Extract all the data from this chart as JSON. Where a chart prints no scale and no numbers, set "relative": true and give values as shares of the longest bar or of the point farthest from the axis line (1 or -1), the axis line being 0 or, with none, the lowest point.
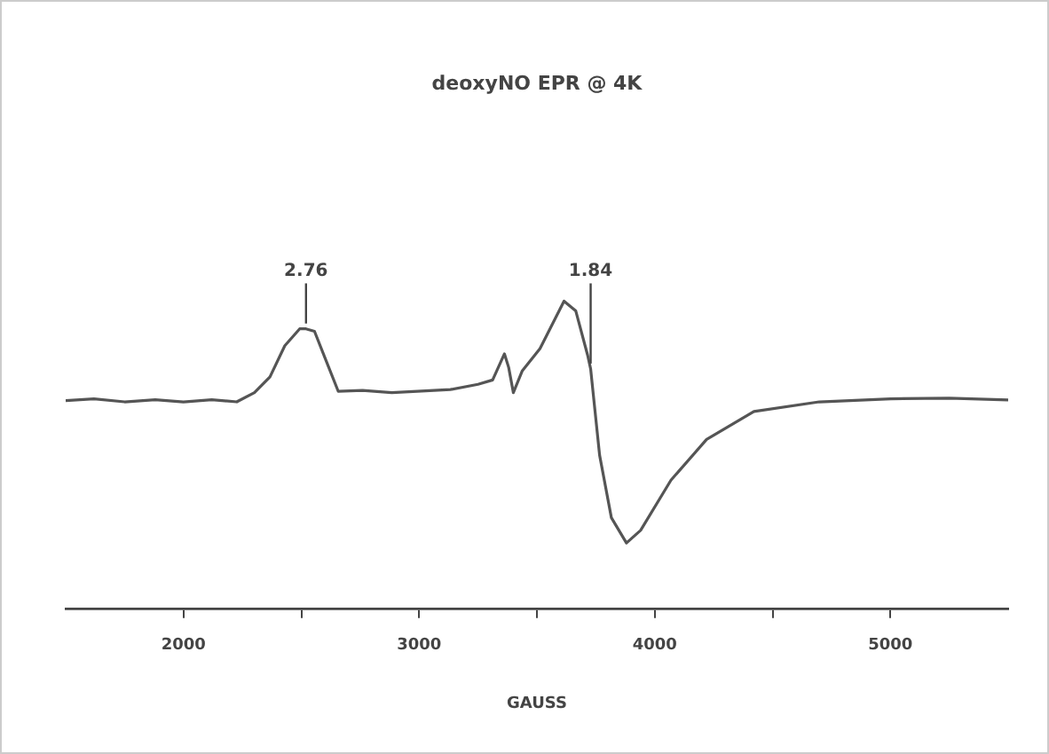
{
  "chart_data": {
    "type": "line",
    "title": "deoxyNO EPR @ 4K",
    "xlabel": "GAUSS",
    "relative": true,
    "x": [
      1500,
      1620,
      1750,
      1880,
      2000,
      2120,
      2226,
      2301,
      2367,
      2430,
      2493,
      2520,
      2556,
      2606,
      2657,
      2760,
      2884,
      3010,
      3133,
      3250,
      3312,
      3362,
      3380,
      3400,
      3438,
      3513,
      3615,
      3665,
      3715,
      3728,
      3766,
      3816,
      3880,
      3940,
      4069,
      4220,
      4421,
      4698,
      5001,
      5250,
      5500
    ],
    "series": [
      {
        "color": "#555555",
        "values": [
          0.677,
          0.683,
          0.673,
          0.68,
          0.673,
          0.68,
          0.673,
          0.703,
          0.754,
          0.855,
          0.91,
          0.91,
          0.902,
          0.805,
          0.707,
          0.71,
          0.703,
          0.708,
          0.713,
          0.73,
          0.744,
          0.829,
          0.785,
          0.703,
          0.774,
          0.846,
          1,
          0.968,
          0.825,
          0.78,
          0.5,
          0.297,
          0.215,
          0.256,
          0.419,
          0.551,
          0.642,
          0.673,
          0.683,
          0.685,
          0.679
        ]
      }
    ],
    "xlim": [
      1500,
      5500
    ],
    "xticks": [
      2000,
      {
        "value": 2500,
        "label": null
      },
      3000,
      {
        "value": 3500,
        "label": null
      },
      4000,
      {
        "value": 4500,
        "label": null
      },
      5000
    ],
    "tick_labels": "x",
    "grid": false,
    "legend": false,
    "marker": "none",
    "line_style": "solid",
    "annotations": [
      {
        "text": "2.76",
        "x": 2520,
        "y": 0.91
      },
      {
        "text": "1.84",
        "x": 3728,
        "y": 0.78
      }
    ]
  }
}
